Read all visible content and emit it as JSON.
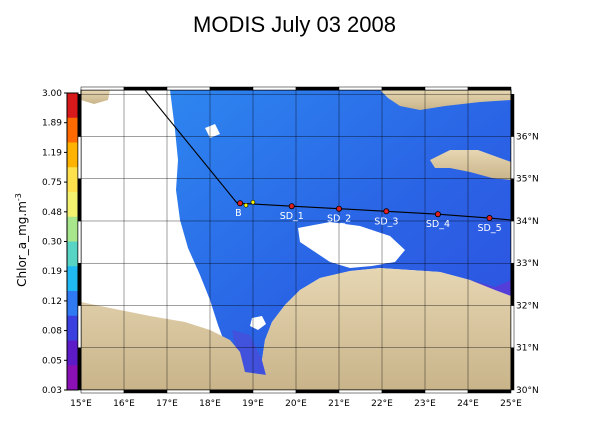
{
  "title": "MODIS July 03 2008",
  "colorbar": {
    "label": "Chlor_a_mg.m",
    "label_exponent": "-3",
    "ticks": [
      "3.00",
      "1.89",
      "1.19",
      "0.75",
      "0.48",
      "0.30",
      "0.19",
      "0.12",
      "0.08",
      "0.05",
      "0.03"
    ],
    "colors": [
      "#d7191c",
      "#ff6a00",
      "#ffb300",
      "#ffe14d",
      "#f2f26e",
      "#a8e68c",
      "#57d4c4",
      "#1fb8f0",
      "#2f79f2",
      "#3a3fe0",
      "#5c1bc7",
      "#8a0fb5"
    ]
  },
  "axes": {
    "lon_labels": [
      "15°E",
      "16°E",
      "17°E",
      "18°E",
      "19°E",
      "20°E",
      "21°E",
      "22°E",
      "23°E",
      "24°E",
      "25°E"
    ],
    "lat_labels": [
      "36°N",
      "35°N",
      "34°N",
      "33°N",
      "32°N",
      "31°N",
      "30°N"
    ],
    "lon_range": [
      15,
      25
    ],
    "lat_range": [
      30,
      37.1
    ]
  },
  "stations": [
    {
      "name": "B",
      "lon": 18.7,
      "lat": 34.42
    },
    {
      "name": "SD_1",
      "lon": 19.9,
      "lat": 34.35
    },
    {
      "name": "SD_2",
      "lon": 21.0,
      "lat": 34.29
    },
    {
      "name": "SD_3",
      "lon": 22.1,
      "lat": 34.23
    },
    {
      "name": "SD_4",
      "lon": 23.3,
      "lat": 34.16
    },
    {
      "name": "SD_5",
      "lon": 24.5,
      "lat": 34.07
    }
  ],
  "colors": {
    "land": "#d8c6a0",
    "sea_deep": "#2a5fe8",
    "sea_mid": "#2f8ff0",
    "coast_high": "#6a3bd6",
    "nodata": "#ffffff",
    "track": "#000000",
    "station": "#e02020"
  }
}
